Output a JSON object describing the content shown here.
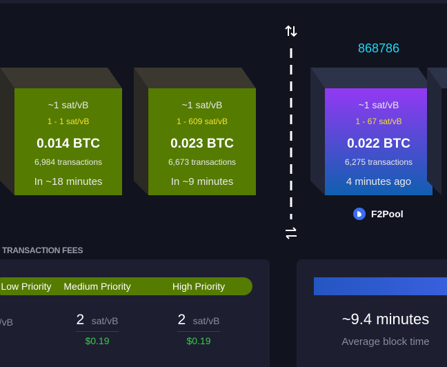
{
  "pending_blocks": [
    {
      "median_fee": "~1 sat/vB",
      "fee_range": "1 - 1 sat/vB",
      "size": "0.014 BTC",
      "transactions": "6,984 transactions",
      "eta": "In ~18 minutes"
    },
    {
      "median_fee": "~1 sat/vB",
      "fee_range": "1 - 609 sat/vB",
      "size": "0.023 BTC",
      "transactions": "6,673 transactions",
      "eta": "In ~9 minutes"
    }
  ],
  "mined_block": {
    "height": "868786",
    "median_fee": "~1 sat/vB",
    "fee_range": "1 - 67 sat/vB",
    "size": "0.022 BTC",
    "transactions": "6,275 transactions",
    "time": "4 minutes ago",
    "pool": "F2Pool"
  },
  "fees": {
    "title": "TRANSACTION FEES",
    "unit": "sat/vB",
    "priorities": [
      {
        "label": "Low Priority"
      },
      {
        "label": "Medium Priority",
        "rate": 2,
        "usd": "$0.19"
      },
      {
        "label": "High Priority",
        "rate": 2,
        "usd": "$0.19"
      }
    ]
  },
  "block_time": {
    "value": "~9.4 minutes",
    "label": "Average block time"
  }
}
